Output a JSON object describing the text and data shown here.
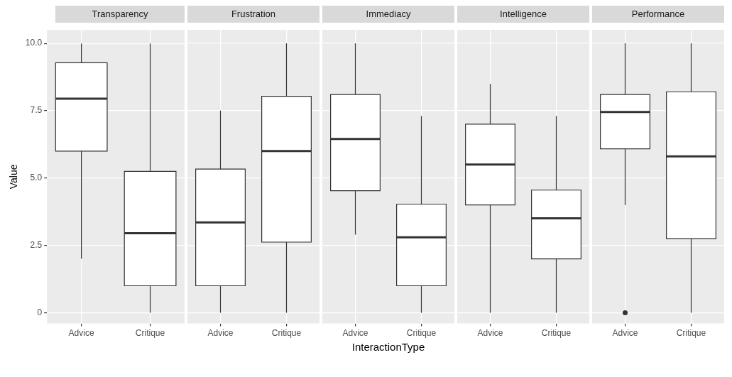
{
  "chart_data": [
    {
      "type": "box",
      "title": "Transparency",
      "ylabel": "Value",
      "categories": [
        "Advice",
        "Critique"
      ],
      "ylim": [
        -0.4,
        10.5
      ],
      "yticks": [
        0.0,
        {
          "value": 2.5,
          "label": "2.5"
        },
        {
          "value": 5,
          "label": "5.0"
        },
        {
          "value": 7.5,
          "label": "7.5"
        },
        {
          "value": 10,
          "label": "10.0"
        }
      ],
      "grid": true,
      "boxes": [
        {
          "low": 2.0,
          "q1": 6.0,
          "median": 7.95,
          "q3": 9.28,
          "high": 10
        },
        {
          "low": 0,
          "q1": 1.0,
          "median": 2.95,
          "q3": 5.25,
          "high": 10
        }
      ]
    },
    {
      "type": "box",
      "title": "Frustration",
      "categories": [
        "Advice",
        "Critique"
      ],
      "ylim": [
        -0.4,
        10.5
      ],
      "yticks": [
        0,
        2.5,
        5,
        7.5,
        10
      ],
      "grid": true,
      "tick_labels": "x",
      "boxes": [
        {
          "low": 0,
          "q1": 1.0,
          "median": 3.35,
          "q3": 5.33,
          "high": 7.5
        },
        {
          "low": 0,
          "q1": 2.62,
          "median": 6.0,
          "q3": 8.03,
          "high": 10
        }
      ]
    },
    {
      "type": "box",
      "title": "Immediacy",
      "xlabel": "InteractionType",
      "categories": [
        "Advice",
        "Critique"
      ],
      "ylim": [
        -0.4,
        10.5
      ],
      "yticks": [
        0,
        2.5,
        5,
        7.5,
        10
      ],
      "grid": true,
      "tick_labels": "x",
      "boxes": [
        {
          "low": 2.9,
          "q1": 4.53,
          "median": 6.45,
          "q3": 8.1,
          "high": 10
        },
        {
          "low": 0,
          "q1": 1.0,
          "median": 2.8,
          "q3": 4.03,
          "high": 7.3
        }
      ]
    },
    {
      "type": "box",
      "title": "Intelligence",
      "categories": [
        "Advice",
        "Critique"
      ],
      "ylim": [
        -0.4,
        10.5
      ],
      "yticks": [
        0,
        2.5,
        5,
        7.5,
        10
      ],
      "grid": true,
      "tick_labels": "x",
      "boxes": [
        {
          "low": 0,
          "q1": 4.0,
          "median": 5.5,
          "q3": 7.0,
          "high": 8.5
        },
        {
          "low": 0,
          "q1": 2.0,
          "median": 3.5,
          "q3": 4.55,
          "high": 7.3
        }
      ]
    },
    {
      "type": "box",
      "title": "Performance",
      "categories": [
        "Advice",
        "Critique"
      ],
      "ylim": [
        -0.4,
        10.5
      ],
      "yticks": [
        0,
        2.5,
        5,
        7.5,
        10
      ],
      "grid": true,
      "tick_labels": "x",
      "boxes": [
        {
          "low": 4.0,
          "q1": 6.08,
          "median": 7.45,
          "q3": 8.1,
          "high": 10,
          "outliers": [
            0
          ]
        },
        {
          "low": 0,
          "q1": 2.75,
          "median": 5.8,
          "q3": 8.2,
          "high": 10
        }
      ]
    }
  ]
}
